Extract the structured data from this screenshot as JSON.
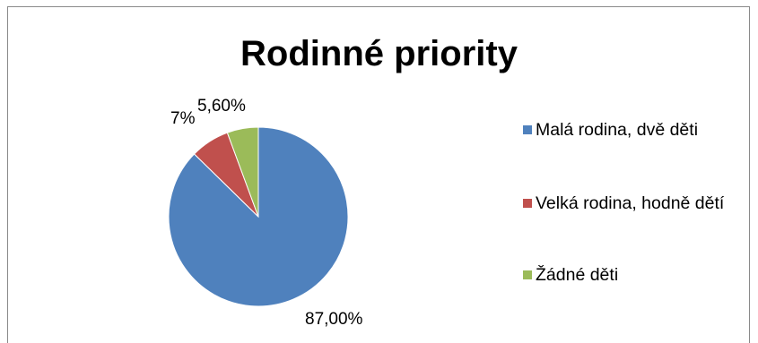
{
  "chart_data": {
    "type": "pie",
    "title": "Rodinné priority",
    "categories": [
      "Malá rodina, dvě děti",
      "Velká rodina, hodně dětí",
      "Žádné děti"
    ],
    "values": [
      87.0,
      7.0,
      5.6
    ],
    "data_labels": [
      "87,00%",
      "7%",
      "5,60%"
    ],
    "colors": [
      "#4f81bd",
      "#c0504d",
      "#9bbb59"
    ],
    "legend_position": "right",
    "start_angle_deg": 0,
    "direction": "clockwise"
  }
}
